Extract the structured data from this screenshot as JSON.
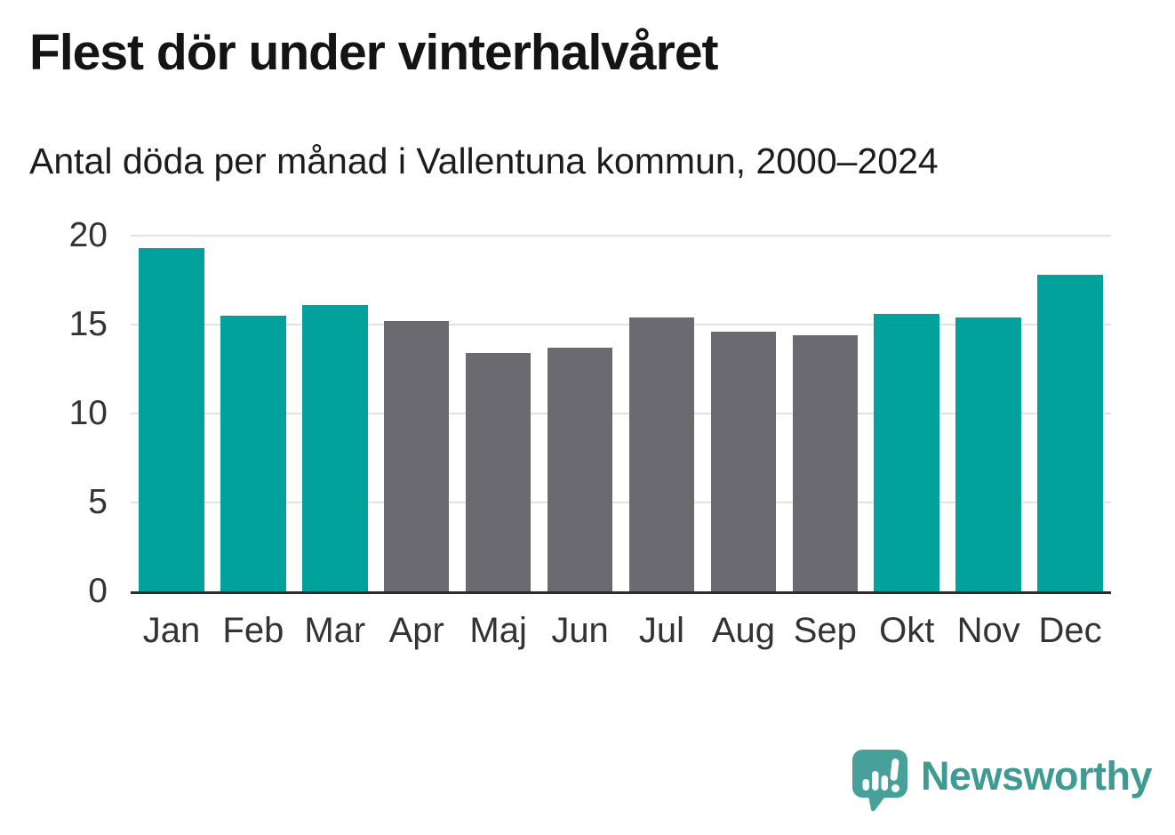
{
  "header": {
    "title": "Flest dör under vinterhalvåret",
    "subtitle": "Antal döda per månad i Vallentuna kommun, 2000–2024"
  },
  "chart_data": {
    "type": "bar",
    "title": "Flest dör under vinterhalvåret",
    "subtitle": "Antal döda per månad i Vallentuna kommun, 2000–2024",
    "categories": [
      "Jan",
      "Feb",
      "Mar",
      "Apr",
      "Maj",
      "Jun",
      "Jul",
      "Aug",
      "Sep",
      "Okt",
      "Nov",
      "Dec"
    ],
    "values": [
      19.3,
      15.5,
      16.1,
      15.2,
      13.4,
      13.7,
      15.4,
      14.6,
      14.4,
      15.6,
      15.4,
      17.8
    ],
    "bar_colors": [
      "#00a29b",
      "#00a29b",
      "#00a29b",
      "#6c6a71",
      "#6c6a71",
      "#6c6a71",
      "#6c6a71",
      "#6c6a71",
      "#6c6a71",
      "#00a29b",
      "#00a29b",
      "#00a29b"
    ],
    "xlabel": "",
    "ylabel": "",
    "ylim": [
      0,
      20
    ],
    "yticks": [
      0,
      5,
      10,
      15,
      20
    ],
    "grid": "horizontal",
    "legend": "none"
  },
  "footer": {
    "brand": "Newsworthy",
    "logo_icon": "newsworthy-speech-bubble-chart-icon",
    "brand_color": "#3e9a93"
  },
  "colors": {
    "bar_teal": "#00a29b",
    "bar_gray": "#6c6a71",
    "gridline": "#e2e2e2",
    "axis_line": "#2d2d2d",
    "title_text": "#141414",
    "tick_label": "#333333",
    "logo_teal": "#47a19a"
  }
}
